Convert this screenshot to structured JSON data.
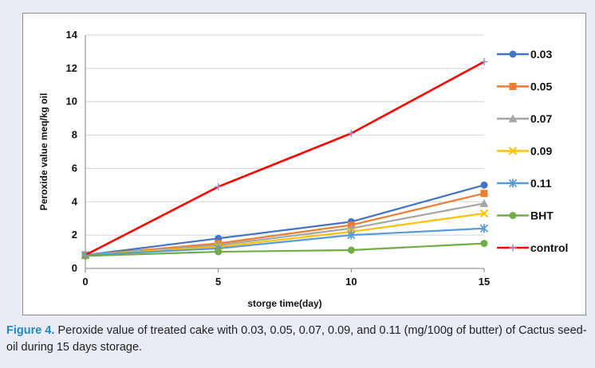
{
  "chart_data": {
    "type": "line",
    "title": "",
    "xlabel": "storge time(day)",
    "ylabel": "Peroxide value meq/kg oil",
    "x": [
      0,
      5,
      10,
      15
    ],
    "xlim": [
      0,
      15
    ],
    "ylim": [
      0,
      14
    ],
    "xticks": [
      "0",
      "5",
      "10",
      "15"
    ],
    "yticks": [
      "0",
      "2",
      "4",
      "6",
      "8",
      "10",
      "12",
      "14"
    ],
    "grid": "horizontal",
    "legend_position": "right",
    "series": [
      {
        "name": "0.03",
        "values": [
          0.8,
          1.8,
          2.8,
          5.0
        ],
        "color": "#4472c4",
        "marker": "circle"
      },
      {
        "name": "0.05",
        "values": [
          0.8,
          1.5,
          2.6,
          4.5
        ],
        "color": "#ed7d31",
        "marker": "square"
      },
      {
        "name": "0.07",
        "values": [
          0.8,
          1.4,
          2.4,
          3.9
        ],
        "color": "#a5a5a5",
        "marker": "triangle"
      },
      {
        "name": "0.09",
        "values": [
          0.8,
          1.3,
          2.2,
          3.3
        ],
        "color": "#ffc000",
        "marker": "x"
      },
      {
        "name": "0.11",
        "values": [
          0.8,
          1.2,
          2.0,
          2.4
        ],
        "color": "#5b9bd5",
        "marker": "star"
      },
      {
        "name": "BHT",
        "values": [
          0.75,
          1.0,
          1.1,
          1.5
        ],
        "color": "#70ad47",
        "marker": "circle"
      },
      {
        "name": "control",
        "values": [
          0.8,
          4.9,
          8.1,
          12.4
        ],
        "color": "#ff0000",
        "marker": "plus"
      }
    ]
  },
  "caption": {
    "label": "Figure 4.",
    "text": " Peroxide value of treated cake with 0.03, 0.05, 0.07, 0.09, and 0.11 (mg/100g of butter) of Cactus seed-oil during 15 days storage."
  }
}
